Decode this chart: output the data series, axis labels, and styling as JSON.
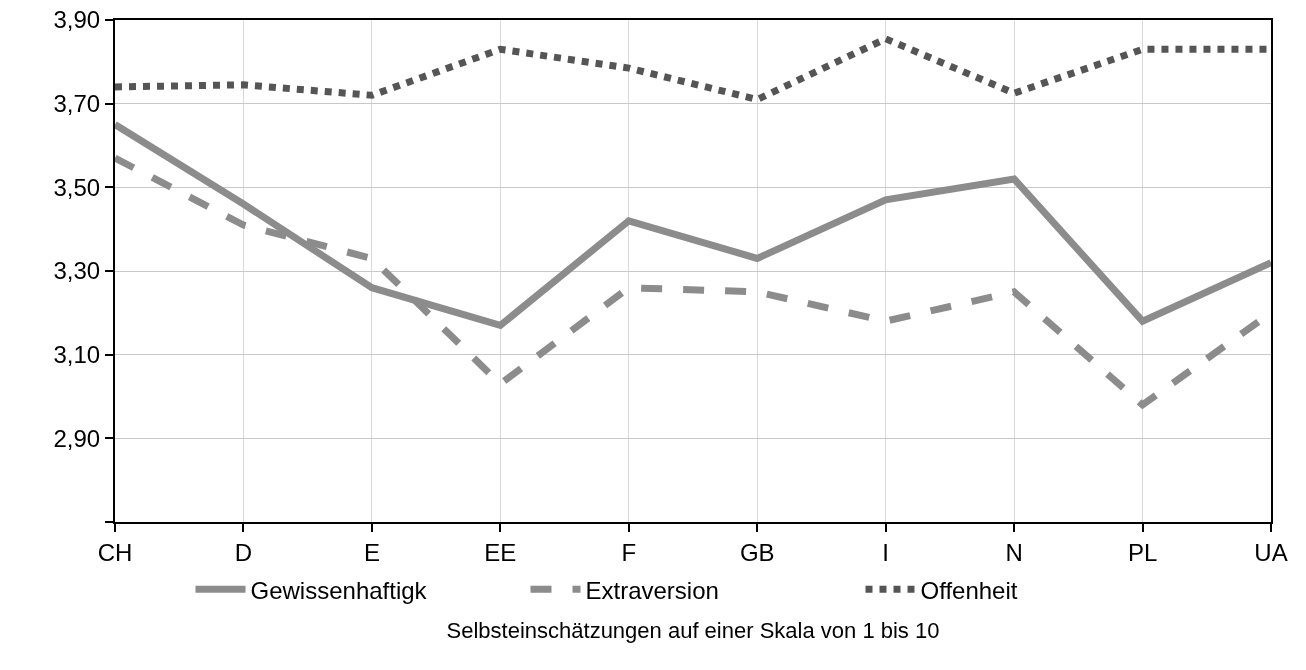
{
  "chart_data": {
    "type": "line",
    "categories": [
      "CH",
      "D",
      "E",
      "EE",
      "F",
      "GB",
      "I",
      "N",
      "PL",
      "UA"
    ],
    "series": [
      {
        "name": "Gewissenhaftigk",
        "color": "#8c8c8c",
        "line_style": "solid",
        "values": [
          3.65,
          3.46,
          3.26,
          3.17,
          3.42,
          3.33,
          3.47,
          3.52,
          3.18,
          3.32
        ]
      },
      {
        "name": "Extraversion",
        "color": "#8c8c8c",
        "line_style": "dashed",
        "values": [
          3.57,
          3.41,
          3.33,
          3.03,
          3.26,
          3.25,
          3.18,
          3.25,
          2.98,
          3.2
        ]
      },
      {
        "name": "Offenheit",
        "color": "#555555",
        "line_style": "dotted",
        "values": [
          3.74,
          3.745,
          3.72,
          3.83,
          3.785,
          3.71,
          3.855,
          3.725,
          3.83,
          3.83
        ]
      }
    ],
    "ylim": [
      2.7,
      3.9
    ],
    "yticks": [
      {
        "value": 2.7,
        "label": null
      },
      {
        "value": 2.9,
        "label": "2,90"
      },
      {
        "value": 3.1,
        "label": "3,10"
      },
      {
        "value": 3.3,
        "label": "3,30"
      },
      {
        "value": 3.5,
        "label": "3,50"
      },
      {
        "value": 3.7,
        "label": "3,70"
      },
      {
        "value": 3.9,
        "label": "3,90"
      }
    ],
    "xlabel": "Selbsteinschätzungen auf einer Skala von 1 bis 10",
    "grid": true,
    "legend": "bottom",
    "marker": "none"
  }
}
